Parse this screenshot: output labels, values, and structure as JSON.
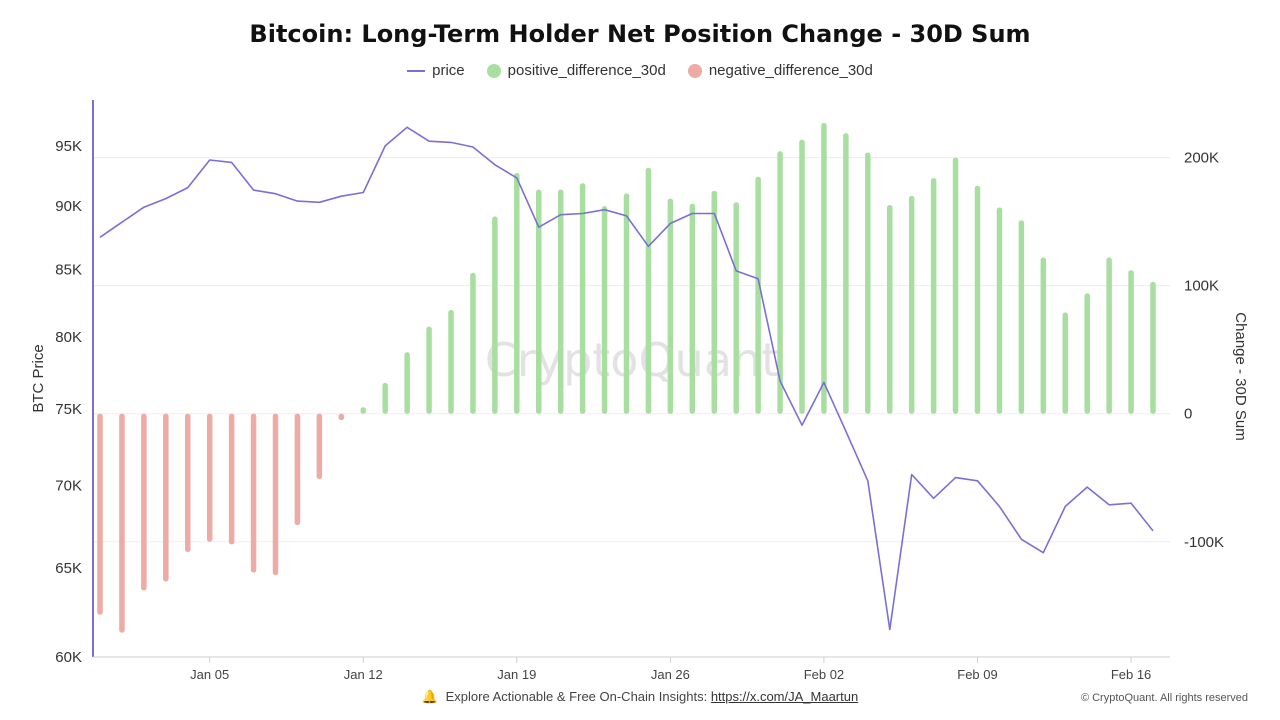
{
  "title": "Bitcoin: Long-Term Holder Net Position Change - 30D Sum",
  "legend": [
    {
      "label": "price",
      "kind": "line",
      "color": "#7b6fd6"
    },
    {
      "label": "positive_difference_30d",
      "kind": "dot",
      "color": "#a8dfa0"
    },
    {
      "label": "negative_difference_30d",
      "kind": "dot",
      "color": "#eeaaa4"
    }
  ],
  "footer": {
    "text": "Explore Actionable & Free On-Chain Insights:",
    "link": "https://x.com/JA_Maartun",
    "copyright": "© CryptoQuant. All rights reserved"
  },
  "watermark": "CryptoQuant",
  "chart_data": {
    "type": "bar+line",
    "title": "Bitcoin: Long-Term Holder Net Position Change - 30D Sum",
    "left_axis": {
      "label": "BTC Price",
      "scale": "log",
      "range": [
        60000,
        99000
      ],
      "ticks": [
        60000,
        65000,
        70000,
        75000,
        80000,
        85000,
        90000,
        95000
      ],
      "tick_labels": [
        "60K",
        "65K",
        "70K",
        "75K",
        "80K",
        "85K",
        "90K",
        "95K"
      ]
    },
    "right_axis": {
      "label": "Change - 30D Sum",
      "range": [
        -190000,
        245000
      ],
      "ticks": [
        -100000,
        0,
        100000,
        200000
      ],
      "tick_labels": [
        "-100K",
        "0",
        "100K",
        "200K"
      ]
    },
    "x_axis": {
      "start": "Dec 31",
      "end": "Feb 17",
      "tick_labels": [
        "Jan 05",
        "Jan 12",
        "Jan 19",
        "Jan 26",
        "Feb 02",
        "Feb 09",
        "Feb 16"
      ],
      "tick_day_index": [
        5,
        12,
        19,
        26,
        33,
        40,
        47
      ]
    },
    "price": [
      87500,
      88700,
      89900,
      90600,
      91500,
      93800,
      93600,
      91300,
      91000,
      90400,
      90300,
      90800,
      91100,
      95000,
      96600,
      95400,
      95300,
      94900,
      93400,
      92300,
      88300,
      89300,
      89400,
      89700,
      89200,
      86800,
      88600,
      89400,
      89400,
      84900,
      84300,
      76900,
      73900,
      76800,
      73500,
      70300,
      61500,
      70700,
      69200,
      70500,
      70300,
      68700,
      66700,
      65900,
      68700,
      69900,
      68800,
      68900,
      67200
    ],
    "change_30d": [
      -157000,
      -171000,
      -138000,
      -131000,
      -108000,
      -100000,
      -102000,
      -124000,
      -126000,
      -87000,
      -51000,
      -5000,
      5000,
      24000,
      48000,
      68000,
      81000,
      110000,
      154000,
      188000,
      175000,
      175000,
      180000,
      162000,
      172000,
      192000,
      168000,
      164000,
      174000,
      165000,
      185000,
      205000,
      214000,
      227000,
      219000,
      204000,
      163000,
      170000,
      184000,
      200000,
      178000,
      161000,
      151000,
      122000,
      79000,
      94000,
      122000,
      112000,
      103000
    ]
  }
}
